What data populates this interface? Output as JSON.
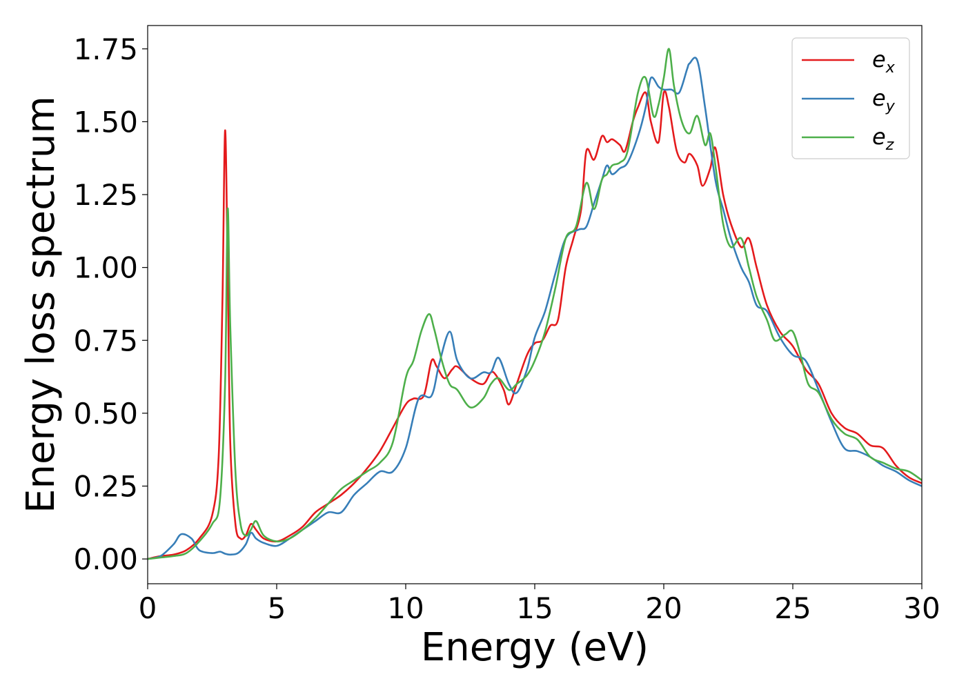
{
  "chart_data": {
    "type": "line",
    "xlabel": "Energy (eV)",
    "ylabel": "Energy loss spectrum",
    "xlim": [
      0,
      30
    ],
    "ylim": [
      -0.085,
      1.83
    ],
    "xticks": [
      0,
      5,
      10,
      15,
      20,
      25,
      30
    ],
    "xtick_labels": [
      "0",
      "5",
      "10",
      "15",
      "20",
      "25",
      "30"
    ],
    "yticks": [
      0.0,
      0.25,
      0.5,
      0.75,
      1.0,
      1.25,
      1.5,
      1.75
    ],
    "ytick_labels": [
      "0.00",
      "0.25",
      "0.50",
      "0.75",
      "1.00",
      "1.25",
      "1.50",
      "1.75"
    ],
    "grid": false,
    "legend": "top-right",
    "series": [
      {
        "name": "e",
        "sub": "x",
        "color": "#e41a1c",
        "x": [
          0,
          0.5,
          1,
          1.5,
          2,
          2.5,
          2.75,
          2.9,
          3.0,
          3.1,
          3.2,
          3.4,
          3.6,
          3.8,
          4.0,
          4.2,
          4.5,
          5,
          5.5,
          6,
          6.5,
          7,
          7.5,
          8,
          8.5,
          9,
          9.5,
          10,
          10.3,
          10.7,
          11,
          11.2,
          11.5,
          11.8,
          12,
          12.5,
          13,
          13.3,
          13.5,
          13.8,
          14,
          14.3,
          14.7,
          15,
          15.3,
          15.6,
          15.9,
          16.2,
          16.5,
          16.8,
          17,
          17.3,
          17.6,
          17.8,
          18,
          18.3,
          18.5,
          18.8,
          19,
          19.3,
          19.5,
          19.8,
          20,
          20.2,
          20.5,
          20.8,
          21,
          21.3,
          21.5,
          21.8,
          22,
          22.3,
          22.6,
          23,
          23.3,
          23.6,
          24,
          24.5,
          25,
          25.5,
          26,
          26.5,
          27,
          27.5,
          28,
          28.5,
          29,
          29.5,
          30
        ],
        "values": [
          0,
          0.01,
          0.015,
          0.03,
          0.07,
          0.15,
          0.35,
          0.9,
          1.47,
          1.0,
          0.4,
          0.12,
          0.07,
          0.08,
          0.12,
          0.1,
          0.07,
          0.06,
          0.08,
          0.11,
          0.16,
          0.19,
          0.22,
          0.26,
          0.31,
          0.37,
          0.45,
          0.53,
          0.55,
          0.56,
          0.68,
          0.66,
          0.62,
          0.65,
          0.66,
          0.62,
          0.6,
          0.64,
          0.63,
          0.58,
          0.53,
          0.6,
          0.7,
          0.74,
          0.75,
          0.8,
          0.82,
          1.0,
          1.1,
          1.2,
          1.4,
          1.37,
          1.45,
          1.43,
          1.44,
          1.42,
          1.4,
          1.5,
          1.55,
          1.6,
          1.5,
          1.43,
          1.6,
          1.55,
          1.4,
          1.36,
          1.39,
          1.35,
          1.28,
          1.34,
          1.41,
          1.25,
          1.15,
          1.07,
          1.1,
          1.0,
          0.87,
          0.78,
          0.73,
          0.65,
          0.6,
          0.5,
          0.45,
          0.43,
          0.39,
          0.38,
          0.32,
          0.28,
          0.26
        ]
      },
      {
        "name": "e",
        "sub": "y",
        "color": "#377eb8",
        "x": [
          0,
          0.5,
          1,
          1.3,
          1.7,
          2,
          2.5,
          2.8,
          3.0,
          3.2,
          3.5,
          3.8,
          4.0,
          4.2,
          4.5,
          5,
          5.5,
          6,
          6.5,
          7,
          7.5,
          8,
          8.5,
          9,
          9.5,
          10,
          10.5,
          11,
          11.3,
          11.7,
          12,
          12.5,
          13,
          13.3,
          13.6,
          14,
          14.3,
          14.7,
          15,
          15.4,
          15.8,
          16.2,
          16.7,
          17,
          17.3,
          17.6,
          17.8,
          18,
          18.3,
          18.6,
          19,
          19.3,
          19.5,
          19.8,
          20,
          20.3,
          20.6,
          20.9,
          21,
          21.3,
          21.6,
          22,
          22.3,
          22.6,
          23,
          23.3,
          23.6,
          24,
          24.5,
          25,
          25.5,
          26,
          26.5,
          27,
          27.5,
          28,
          28.5,
          29,
          29.5,
          30
        ],
        "values": [
          0,
          0.01,
          0.05,
          0.085,
          0.07,
          0.03,
          0.02,
          0.025,
          0.018,
          0.015,
          0.02,
          0.05,
          0.09,
          0.07,
          0.055,
          0.045,
          0.07,
          0.1,
          0.13,
          0.16,
          0.16,
          0.22,
          0.26,
          0.3,
          0.3,
          0.38,
          0.55,
          0.56,
          0.67,
          0.78,
          0.68,
          0.62,
          0.64,
          0.64,
          0.69,
          0.6,
          0.57,
          0.65,
          0.76,
          0.85,
          0.98,
          1.1,
          1.13,
          1.14,
          1.22,
          1.3,
          1.35,
          1.32,
          1.34,
          1.36,
          1.45,
          1.55,
          1.65,
          1.62,
          1.61,
          1.61,
          1.6,
          1.68,
          1.7,
          1.71,
          1.55,
          1.3,
          1.2,
          1.1,
          1.0,
          0.95,
          0.87,
          0.85,
          0.76,
          0.7,
          0.68,
          0.58,
          0.47,
          0.38,
          0.37,
          0.35,
          0.32,
          0.3,
          0.27,
          0.25
        ]
      },
      {
        "name": "e",
        "sub": "z",
        "color": "#4daf4a",
        "x": [
          0,
          0.5,
          1,
          1.5,
          2,
          2.5,
          2.8,
          3.0,
          3.1,
          3.2,
          3.4,
          3.6,
          3.8,
          4.0,
          4.2,
          4.5,
          5,
          5.5,
          6,
          6.5,
          7,
          7.5,
          8,
          8.5,
          9,
          9.5,
          10,
          10.3,
          10.6,
          10.9,
          11.1,
          11.4,
          11.7,
          12,
          12.5,
          13,
          13.3,
          13.6,
          14,
          14.3,
          14.7,
          15,
          15.4,
          15.8,
          16.2,
          16.6,
          17,
          17.3,
          17.6,
          17.8,
          18,
          18.3,
          18.6,
          19,
          19.3,
          19.6,
          19.8,
          20,
          20.2,
          20.4,
          20.7,
          21,
          21.3,
          21.6,
          21.8,
          22,
          22.3,
          22.6,
          23,
          23.3,
          23.6,
          24,
          24.3,
          24.7,
          25,
          25.3,
          25.6,
          26,
          26.5,
          27,
          27.5,
          28,
          28.5,
          29,
          29.5,
          30
        ],
        "values": [
          0,
          0.005,
          0.01,
          0.02,
          0.06,
          0.12,
          0.2,
          0.6,
          1.2,
          0.8,
          0.3,
          0.12,
          0.08,
          0.1,
          0.13,
          0.08,
          0.06,
          0.07,
          0.1,
          0.14,
          0.19,
          0.24,
          0.27,
          0.3,
          0.33,
          0.4,
          0.62,
          0.68,
          0.78,
          0.84,
          0.79,
          0.68,
          0.6,
          0.58,
          0.52,
          0.55,
          0.6,
          0.62,
          0.58,
          0.6,
          0.63,
          0.68,
          0.78,
          0.93,
          1.1,
          1.14,
          1.29,
          1.2,
          1.3,
          1.32,
          1.35,
          1.36,
          1.4,
          1.6,
          1.65,
          1.52,
          1.56,
          1.65,
          1.75,
          1.62,
          1.5,
          1.46,
          1.52,
          1.42,
          1.46,
          1.35,
          1.15,
          1.07,
          1.1,
          1.0,
          0.9,
          0.82,
          0.75,
          0.77,
          0.78,
          0.7,
          0.6,
          0.57,
          0.48,
          0.43,
          0.41,
          0.35,
          0.33,
          0.31,
          0.3,
          0.27
        ]
      }
    ]
  }
}
